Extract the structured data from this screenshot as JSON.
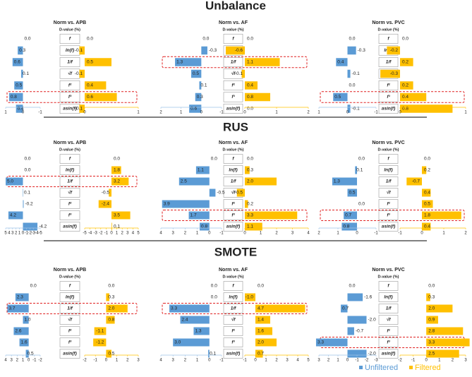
{
  "colors": {
    "unfiltered": "#5b9bd5",
    "filtered": "#ffc000",
    "highlight": "#e02020",
    "text": "#222222",
    "axis": "#9dc3e6"
  },
  "legend": {
    "unfiltered": "Unfiltered",
    "filtered": "Filtered"
  },
  "features": [
    "f",
    "ln(f)",
    "1/f",
    "√f",
    "f²",
    "f³",
    "asin(f)"
  ],
  "chart_data": [
    {
      "section": "Unbalance",
      "type": "bar",
      "subplots": [
        {
          "title": "Norm vs. APB",
          "subtitle": "D-value (%)",
          "unfiltered": [
            0.0,
            0.3,
            0.6,
            0.1,
            0.5,
            0.8,
            0.4
          ],
          "filtered": [
            0.0,
            -0.1,
            0.5,
            -0.1,
            0.4,
            0.6,
            -0.1
          ],
          "highlight_row": 5,
          "left_ticks": [
            "1",
            "0",
            "-1"
          ],
          "right_ticks": [
            "0",
            "1"
          ]
        },
        {
          "title": "Norm vs. AF",
          "subtitle": "D-value (%)",
          "unfiltered": [
            0.0,
            -0.3,
            1.3,
            0.5,
            0.1,
            0.3,
            0.6
          ],
          "filtered": [
            0.0,
            -0.6,
            1.1,
            -0.1,
            0.4,
            0.8,
            0.0
          ],
          "highlight_row": 2,
          "left_ticks": [
            "2",
            "1",
            "0",
            "-1"
          ],
          "right_ticks": [
            "0",
            "1",
            "2"
          ]
        },
        {
          "title": "Norm vs. PVC",
          "subtitle": "D-value (%)",
          "unfiltered": [
            0.0,
            -0.3,
            0.4,
            -0.1,
            0.0,
            0.5,
            -0.1
          ],
          "filtered": [
            0.0,
            -0.2,
            0.2,
            -0.3,
            0.2,
            0.4,
            0.8
          ],
          "highlight_row": 5,
          "left_ticks": [
            "1",
            "0",
            "-1"
          ],
          "right_ticks": [
            "0",
            "1"
          ]
        }
      ]
    },
    {
      "section": "RUS",
      "type": "bar",
      "subplots": [
        {
          "title": "Norm vs. APB",
          "subtitle": "D-value (%)",
          "unfiltered": [
            0.0,
            0.0,
            5.0,
            0.1,
            -0.2,
            4.2,
            -4.2
          ],
          "filtered": [
            0.0,
            1.8,
            3.2,
            -0.5,
            -2.4,
            3.5,
            0.1
          ],
          "highlight_row": 2,
          "left_ticks": [
            "5",
            "4",
            "3",
            "2",
            "1",
            "0",
            "-1",
            "-2",
            "-3",
            "-4",
            "-5"
          ],
          "right_ticks": [
            "-5",
            "-4",
            "-3",
            "-2",
            "-1",
            "0",
            "1",
            "2",
            "3",
            "4",
            "5"
          ]
        },
        {
          "title": "Norm vs. AF",
          "subtitle": "D-value (%)",
          "unfiltered": [
            0.0,
            1.1,
            2.5,
            -0.5,
            3.9,
            1.7,
            0.8
          ],
          "filtered": [
            0.0,
            0.3,
            2.0,
            -0.5,
            0.2,
            3.3,
            1.1
          ],
          "highlight_row": 5,
          "left_ticks": [
            "4",
            "3",
            "2",
            "1",
            "0",
            "-1"
          ],
          "right_ticks": [
            "0",
            "1",
            "2",
            "3",
            "4"
          ]
        },
        {
          "title": "Norm vs. PVC",
          "subtitle": "D-value (%)",
          "unfiltered": [
            0.0,
            0.1,
            1.3,
            0.5,
            0.0,
            0.7,
            0.8
          ],
          "filtered": [
            0.0,
            0.2,
            -0.7,
            0.4,
            0.5,
            1.8,
            0.4
          ],
          "highlight_row": 5,
          "left_ticks": [
            "2",
            "1",
            "0",
            "-1"
          ],
          "right_ticks": [
            "-1",
            "0",
            "1",
            "2"
          ]
        }
      ]
    },
    {
      "section": "SMOTE",
      "type": "bar",
      "subplots": [
        {
          "title": "Norm vs. APB",
          "subtitle": "D-value (%)",
          "unfiltered": [
            0.0,
            2.3,
            3.7,
            1.0,
            2.6,
            1.6,
            0.5
          ],
          "filtered": [
            0.0,
            0.3,
            2.0,
            0.8,
            -1.1,
            -1.2,
            0.5
          ],
          "highlight_row": 2,
          "left_ticks": [
            "4",
            "3",
            "2",
            "1",
            "0",
            "-1",
            "-2"
          ],
          "right_ticks": [
            "-2",
            "-1",
            "0",
            "1",
            "2",
            "3"
          ]
        },
        {
          "title": "Norm vs. AF",
          "subtitle": "D-value (%)",
          "unfiltered": [
            0.0,
            0.0,
            3.3,
            2.4,
            1.3,
            3.0,
            0.1
          ],
          "filtered": [
            0.0,
            -1.0,
            4.7,
            1.4,
            1.6,
            2.0,
            0.7
          ],
          "highlight_row": 2,
          "left_ticks": [
            "4",
            "3",
            "2",
            "1",
            "0",
            "-1"
          ],
          "right_ticks": [
            "-1",
            "0",
            "1",
            "2",
            "3",
            "4",
            "5"
          ]
        },
        {
          "title": "Norm vs. PVC",
          "subtitle": "D-value (%)",
          "unfiltered": [
            0.0,
            -1.6,
            0.7,
            -2.0,
            -0.7,
            3.3,
            -2.0
          ],
          "filtered": [
            0.0,
            0.3,
            2.0,
            0.9,
            2.8,
            3.3,
            2.5
          ],
          "highlight_row": 5,
          "left_ticks": [
            "3",
            "2",
            "1",
            "0",
            "-1",
            "-2",
            "-3"
          ],
          "right_ticks": [
            "-2",
            "-1",
            "0",
            "1",
            "2",
            "3"
          ]
        }
      ]
    }
  ]
}
